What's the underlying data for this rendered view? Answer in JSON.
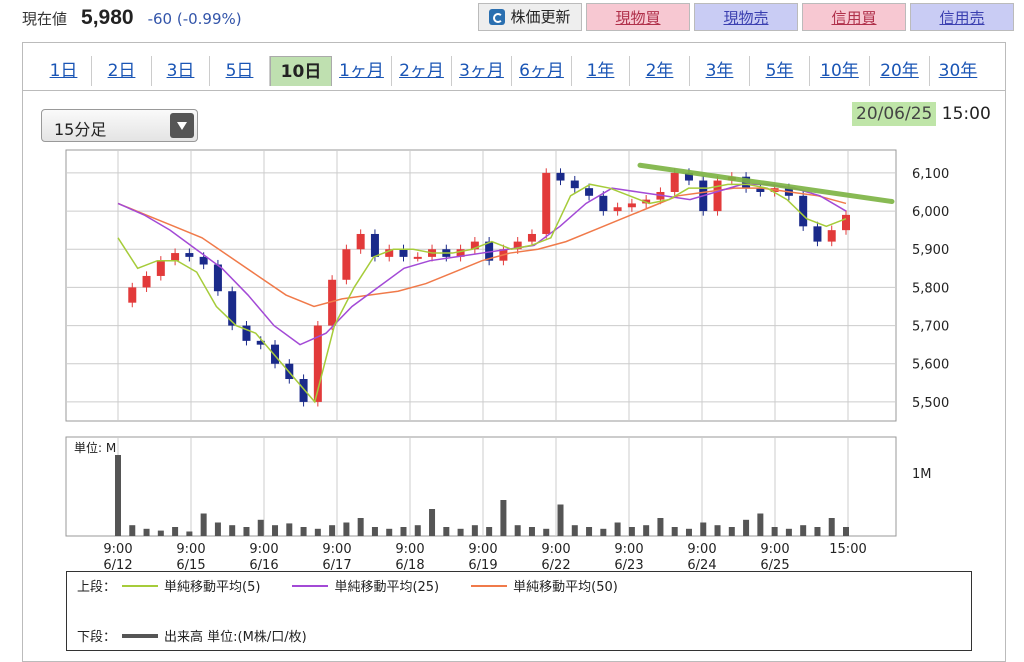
{
  "header": {
    "price_label": "現在値",
    "price": "5,980",
    "change": "-60 (-0.99%)",
    "buttons": {
      "update": "株価更新",
      "spot_buy": "現物買",
      "spot_sell": "現物売",
      "margin_buy": "信用買",
      "margin_sell": "信用売"
    }
  },
  "tabs": [
    "1日",
    "2日",
    "3日",
    "5日",
    "10日",
    "1ヶ月",
    "2ヶ月",
    "3ヶ月",
    "6ヶ月",
    "1年",
    "2年",
    "3年",
    "5年",
    "10年",
    "20年",
    "30年"
  ],
  "active_tab": "10日",
  "interval_select": "15分足",
  "timestamp": {
    "date": "20/06/25",
    "time": "15:00"
  },
  "colors": {
    "candle_up": "#e23a3a",
    "candle_down": "#1a2a8a",
    "ma5": "#a6cc3a",
    "ma25": "#a34ad6",
    "ma50": "#f07a4a",
    "trendline": "#7cb342",
    "volume": "#555555"
  },
  "chart_data": {
    "type": "candlestick",
    "y_ticks": [
      "6,100",
      "6,000",
      "5,900",
      "5,800",
      "5,700",
      "5,600",
      "5,500"
    ],
    "ylim": [
      5450,
      6160
    ],
    "volume_unit_label": "単位: M",
    "volume_tick": "1M",
    "x_ticks": [
      {
        "time": "9:00",
        "date": "6/12"
      },
      {
        "time": "9:00",
        "date": "6/15"
      },
      {
        "time": "9:00",
        "date": "6/16"
      },
      {
        "time": "9:00",
        "date": "6/17"
      },
      {
        "time": "9:00",
        "date": "6/18"
      },
      {
        "time": "9:00",
        "date": "6/19"
      },
      {
        "time": "9:00",
        "date": "6/22"
      },
      {
        "time": "9:00",
        "date": "6/23"
      },
      {
        "time": "9:00",
        "date": "6/24"
      },
      {
        "time": "9:00",
        "date": "6/25"
      },
      {
        "time": "15:00",
        "date": ""
      }
    ],
    "price_path": [
      5760,
      5800,
      5830,
      5870,
      5890,
      5880,
      5860,
      5790,
      5700,
      5660,
      5650,
      5600,
      5560,
      5500,
      5700,
      5820,
      5900,
      5940,
      5880,
      5900,
      5880,
      5880,
      5900,
      5880,
      5900,
      5920,
      5870,
      5900,
      5920,
      5940,
      6100,
      6080,
      6060,
      6040,
      6000,
      6010,
      6020,
      6030,
      6050,
      6100,
      6080,
      6000,
      6080,
      6090,
      6060,
      6050,
      6060,
      6040,
      5960,
      5920,
      5950,
      5990
    ],
    "ma5": [
      5930,
      5850,
      5870,
      5870,
      5840,
      5750,
      5700,
      5680,
      5620,
      5560,
      5500,
      5700,
      5800,
      5880,
      5900,
      5900,
      5890,
      5890,
      5900,
      5920,
      5900,
      5910,
      5930,
      6040,
      6070,
      6060,
      6040,
      6020,
      6030,
      6060,
      6060,
      6070,
      6070,
      6060,
      6030,
      5980,
      5960,
      5980
    ],
    "ma25": [
      6020,
      5990,
      5950,
      5900,
      5850,
      5780,
      5700,
      5650,
      5680,
      5750,
      5800,
      5850,
      5870,
      5880,
      5890,
      5900,
      5910,
      5960,
      6020,
      6060,
      6050,
      6040,
      6030,
      6050,
      6070,
      6070,
      6060,
      6040,
      6000
    ],
    "ma50": [
      6020,
      5990,
      5960,
      5930,
      5880,
      5830,
      5780,
      5750,
      5770,
      5780,
      5790,
      5810,
      5840,
      5870,
      5890,
      5900,
      5920,
      5950,
      5980,
      6010,
      6040,
      6050,
      6060,
      6060,
      6050,
      6040,
      6020
    ],
    "volume": [
      0.9,
      0.12,
      0.08,
      0.06,
      0.1,
      0.05,
      0.25,
      0.15,
      0.12,
      0.1,
      0.18,
      0.12,
      0.14,
      0.1,
      0.08,
      0.12,
      0.15,
      0.2,
      0.1,
      0.08,
      0.1,
      0.12,
      0.3,
      0.1,
      0.08,
      0.12,
      0.1,
      0.4,
      0.12,
      0.1,
      0.08,
      0.35,
      0.12,
      0.1,
      0.08,
      0.15,
      0.1,
      0.12,
      0.2,
      0.1,
      0.08,
      0.15,
      0.12,
      0.1,
      0.18,
      0.25,
      0.1,
      0.08,
      0.12,
      0.1,
      0.2,
      0.1
    ]
  },
  "legend": {
    "upper_label": "上段：",
    "ma5_label": "単純移動平均(5)",
    "ma25_label": "単純移動平均(25)",
    "ma50_label": "単純移動平均(50)",
    "lower_label": "下段：",
    "volume_label": "出来高 単位:(M株/口/枚)"
  }
}
